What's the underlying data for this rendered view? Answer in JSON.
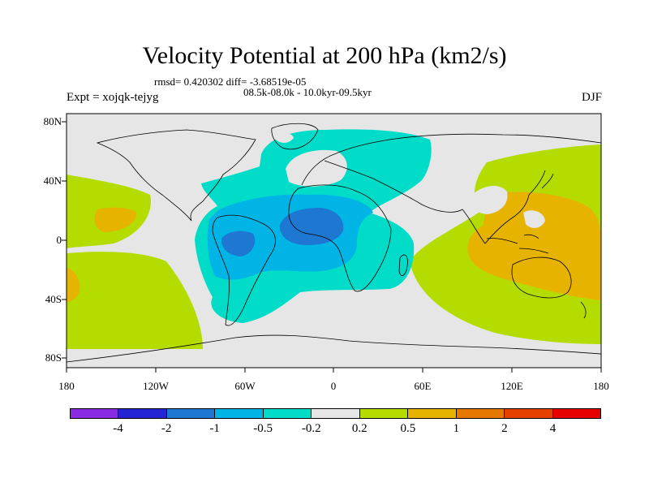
{
  "title": "Velocity Potential at 200 hPa (km2/s)",
  "stats_line": "rmsd= 0.420302 diff= -3.68519e-05",
  "period_line": "08.5k-08.0k - 10.0kyr-09.5kyr",
  "experiment": "Expt = xojqk-tejyg",
  "season": "DJF",
  "x_ticks": [
    "180",
    "120W",
    "60W",
    "0",
    "60E",
    "120E",
    "180"
  ],
  "y_ticks": [
    "80N",
    "40N",
    "0",
    "40S",
    "80S"
  ],
  "colorbar": {
    "labels": [
      "-4",
      "-2",
      "-1",
      "-0.5",
      "-0.2",
      "0.2",
      "0.5",
      "1",
      "2",
      "4"
    ],
    "colors": [
      "#8a2be2",
      "#2424d4",
      "#1e78d2",
      "#00b4e6",
      "#00dcc8",
      "#e6e6e6",
      "#b4dc00",
      "#e6b400",
      "#e67800",
      "#e64000",
      "#e60000"
    ]
  },
  "colors": {
    "neutral": "#e6e6e6",
    "teal": "#00dcc8",
    "cyan": "#00b4e6",
    "blue": "#1e78d2",
    "lime": "#b4dc00",
    "orange": "#e6b400"
  }
}
